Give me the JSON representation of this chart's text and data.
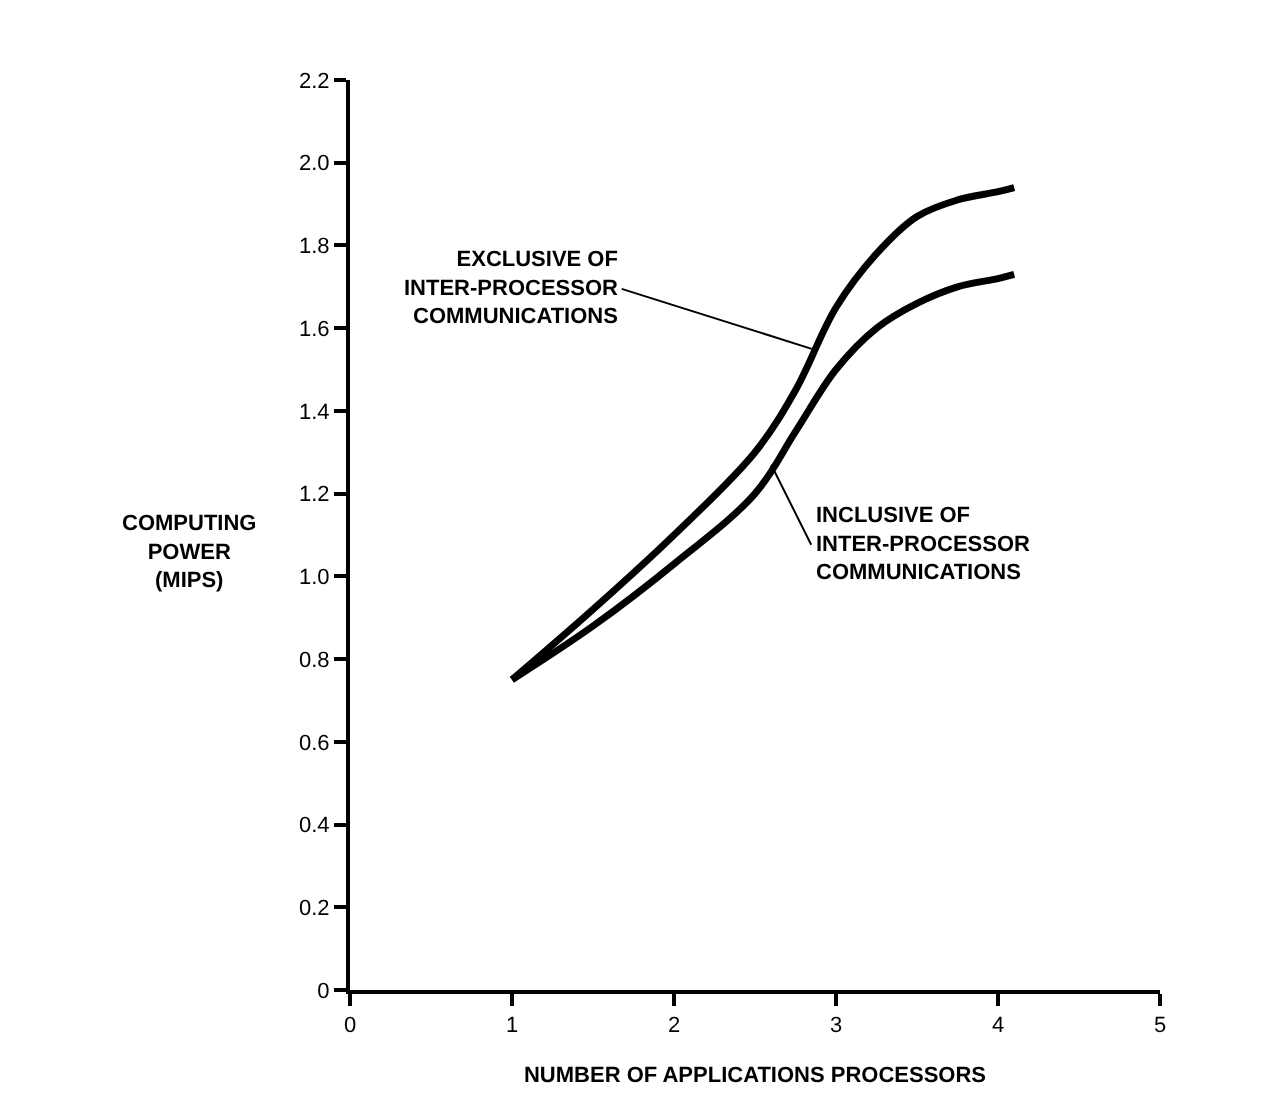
{
  "chart_data": {
    "type": "line",
    "xlabel": "NUMBER OF APPLICATIONS PROCESSORS",
    "ylabel": "COMPUTING\nPOWER\n(MIPS)",
    "xlim": [
      0,
      5
    ],
    "xticks": [
      0,
      1,
      2,
      3,
      4,
      5
    ],
    "ylim": [
      0,
      2.2
    ],
    "yticks": [
      0,
      0.2,
      0.4,
      0.6,
      0.8,
      {
        "value": 1,
        "label": "1.0"
      },
      1.2,
      1.4,
      1.6,
      1.8,
      {
        "value": 2,
        "label": "2.0"
      },
      2.2
    ],
    "marker": "none",
    "line_style": "solid",
    "series": [
      {
        "color": "#000000",
        "x": [
          1,
          1.5,
          2,
          2.5,
          2.75,
          3,
          3.25,
          3.5,
          3.75,
          4,
          4.1
        ],
        "values": [
          0.75,
          0.92,
          1.1,
          1.3,
          1.45,
          1.65,
          1.78,
          1.87,
          1.91,
          1.93,
          1.94
        ]
      },
      {
        "color": "#000000",
        "x": [
          1,
          1.5,
          2,
          2.5,
          2.75,
          3,
          3.25,
          3.5,
          3.75,
          4,
          4.1
        ],
        "values": [
          0.75,
          0.88,
          1.03,
          1.2,
          1.35,
          1.5,
          1.6,
          1.66,
          1.7,
          1.72,
          1.73
        ]
      }
    ],
    "annotations": [
      {
        "text": "EXCLUSIVE OF\nINTER-PROCESSOR\nCOMMUNICATIONS",
        "x": 2.85,
        "y": 1.55
      },
      {
        "text": "INCLUSIVE OF\nINTER-PROCESSOR\nCOMMUNICATIONS",
        "x": 2.6,
        "y": 1.27
      }
    ]
  }
}
